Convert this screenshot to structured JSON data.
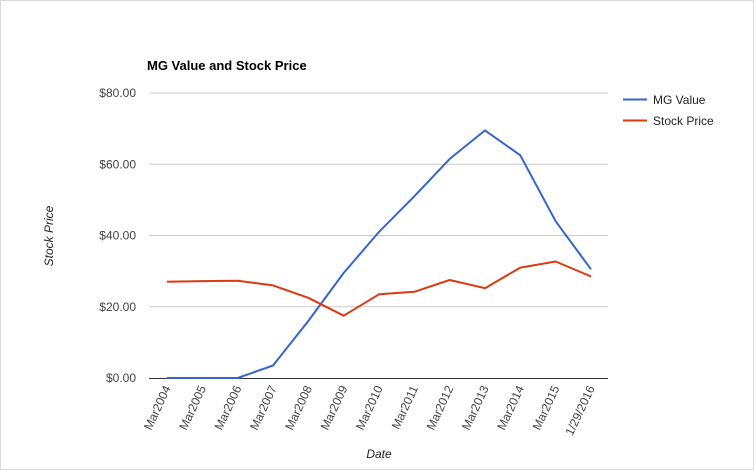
{
  "chart_data": {
    "type": "line",
    "title": "MG Value and Stock Price",
    "xlabel": "Date",
    "ylabel": "Stock Price",
    "categories": [
      "Mar2004",
      "Mar2005",
      "Mar2006",
      "Mar2007",
      "Mar2008",
      "Mar2009",
      "Mar2010",
      "Mar2011",
      "Mar2012",
      "Mar2013",
      "Mar2014",
      "Mar2015",
      "1/29/2016"
    ],
    "series": [
      {
        "name": "MG Value",
        "color": "#3366cc",
        "values": [
          0,
          0,
          0,
          3.5,
          16,
          29.5,
          41,
          51,
          61.5,
          69.5,
          62.5,
          44,
          30.5
        ]
      },
      {
        "name": "Stock Price",
        "color": "#dc3912",
        "values": [
          27,
          27.2,
          27.3,
          26,
          22.5,
          17.5,
          23.5,
          24.2,
          27.5,
          25.2,
          31,
          32.7,
          28.5
        ]
      }
    ],
    "ylim": [
      0,
      80
    ],
    "yticks": [
      0,
      20,
      40,
      60,
      80
    ],
    "ytick_labels": [
      "$0.00",
      "$20.00",
      "$40.00",
      "$60.00",
      "$80.00"
    ],
    "grid": true,
    "legend_position": "right"
  }
}
